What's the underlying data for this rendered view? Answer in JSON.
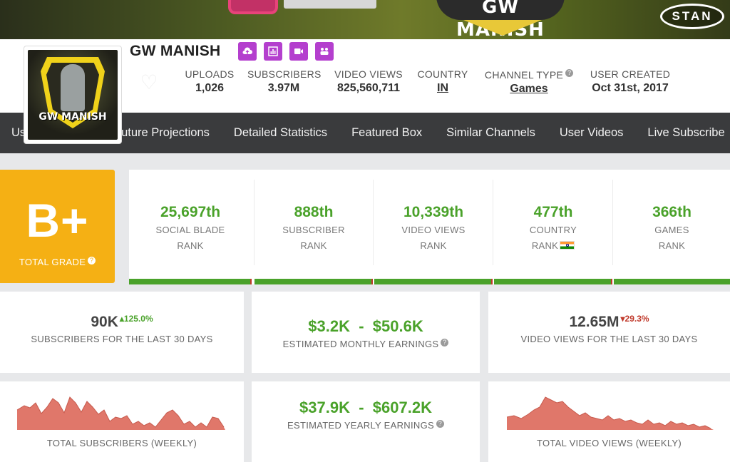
{
  "banner": {
    "title": "GW MANISH",
    "badge": "STAN"
  },
  "channel": {
    "name": "GW MANISH",
    "avatar_text": "GW MANISH",
    "icons": [
      "upload-icon",
      "chart-icon",
      "video-icon",
      "community-icon"
    ]
  },
  "stats": [
    {
      "label": "UPLOADS",
      "value": "1,026"
    },
    {
      "label": "SUBSCRIBERS",
      "value": "3.97M"
    },
    {
      "label": "VIDEO VIEWS",
      "value": "825,560,711"
    },
    {
      "label": "COUNTRY",
      "value": "IN"
    },
    {
      "label": "CHANNEL TYPE",
      "value": "Games"
    },
    {
      "label": "USER CREATED",
      "value": "Oct 31st, 2017"
    }
  ],
  "nav": [
    "User Summary",
    "Future Projections",
    "Detailed Statistics",
    "Featured Box",
    "Similar Channels",
    "User Videos",
    "Live Subscribe"
  ],
  "grade": {
    "letter": "B+",
    "label": "TOTAL GRADE"
  },
  "ranks": [
    {
      "value": "25,697th",
      "l1": "SOCIAL BLADE",
      "l2": "RANK"
    },
    {
      "value": "888th",
      "l1": "SUBSCRIBER",
      "l2": "RANK"
    },
    {
      "value": "10,339th",
      "l1": "VIDEO VIEWS",
      "l2": "RANK"
    },
    {
      "value": "477th",
      "l1": "COUNTRY",
      "l2": "RANK"
    },
    {
      "value": "366th",
      "l1": "GAMES",
      "l2": "RANK"
    }
  ],
  "summary": {
    "subs30": {
      "value": "90K",
      "delta": "125.0%",
      "label": "SUBSCRIBERS FOR THE LAST 30 DAYS"
    },
    "monthly": {
      "low": "$3.2K",
      "sep": "-",
      "high": "$50.6K",
      "label": "ESTIMATED MONTHLY EARNINGS"
    },
    "views30": {
      "value": "12.65M",
      "delta": "29.3%",
      "label": "VIDEO VIEWS FOR THE LAST 30 DAYS"
    },
    "yearly": {
      "low": "$37.9K",
      "sep": "-",
      "high": "$607.2K",
      "label": "ESTIMATED YEARLY EARNINGS"
    }
  },
  "charts": {
    "subs_label": "TOTAL SUBSCRIBERS (WEEKLY)",
    "views_label": "TOTAL VIDEO VIEWS (WEEKLY)"
  },
  "colors": {
    "accent_green": "#4aa22a",
    "grade_orange": "#f5b014",
    "down_red": "#c0392b",
    "icon_purple": "#b43fce",
    "spark_fill": "#e0776a"
  }
}
